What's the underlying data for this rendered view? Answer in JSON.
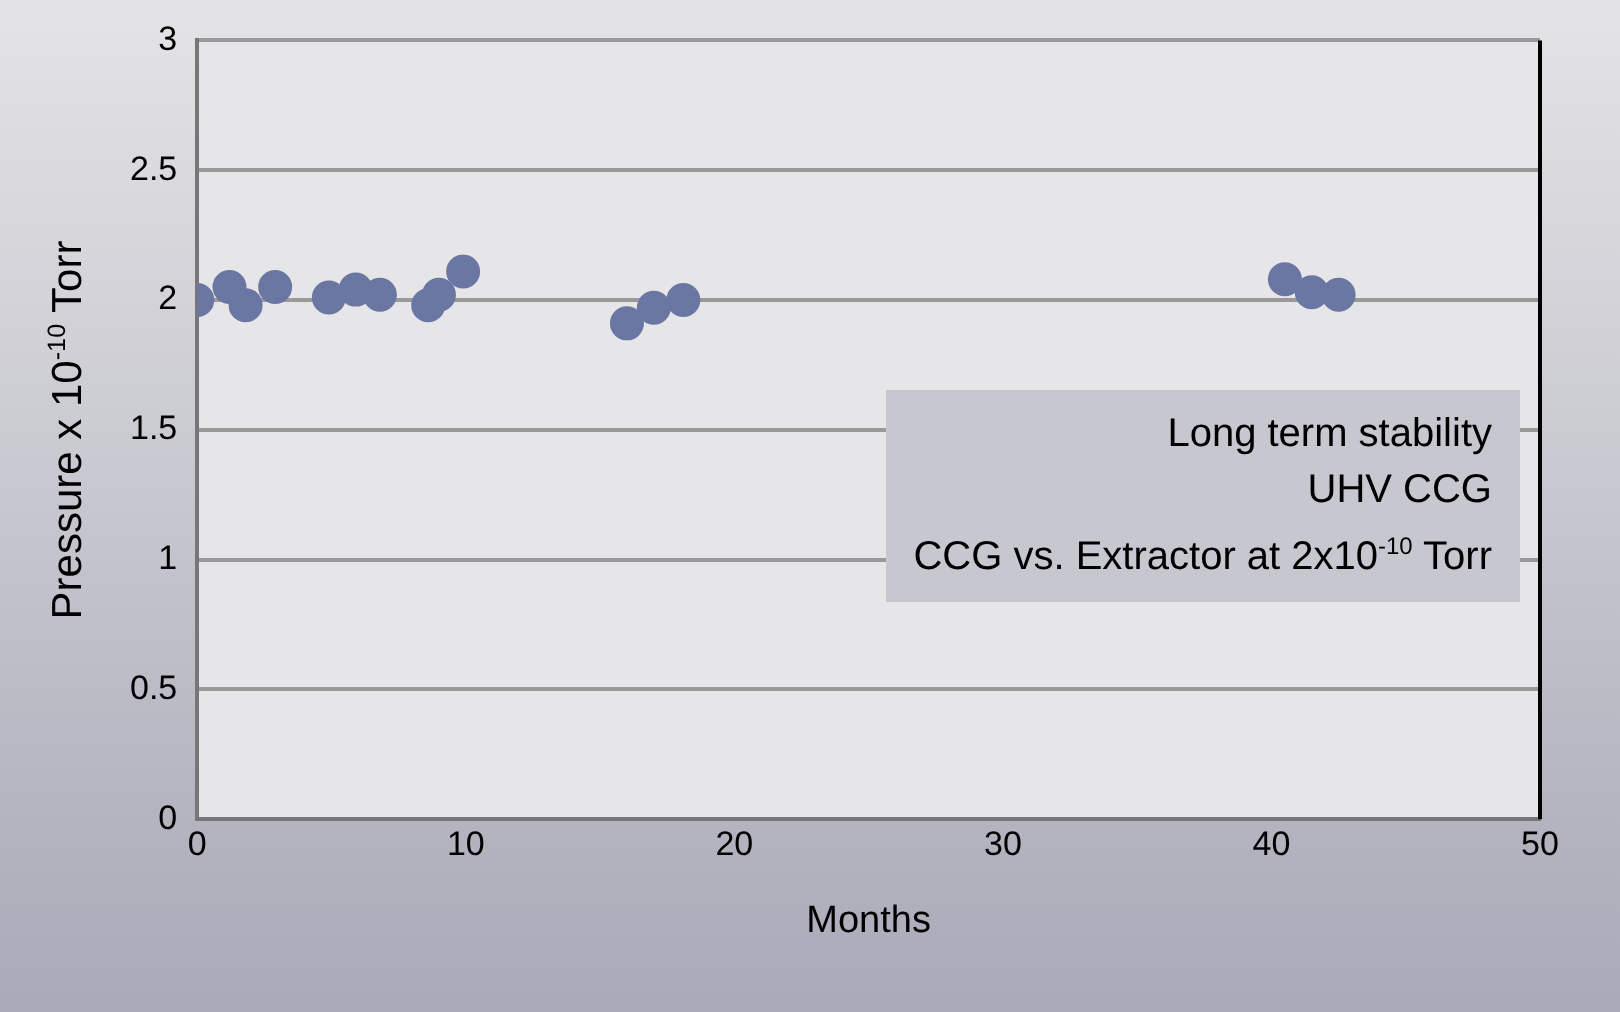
{
  "chart_data": {
    "type": "scatter",
    "xlabel": "Months",
    "ylabel": "Pressure x 10$^{-10}$ Torr",
    "annotations": [
      "Long term stability",
      "UHV CCG",
      "CCG vs. Extractor at 2x10$^{-10}$ Torr"
    ],
    "series": [
      {
        "color": "#6b77a3",
        "x": [
          0,
          1.2,
          1.8,
          2.9,
          4.9,
          5.9,
          6.8,
          8.6,
          9.0,
          9.9,
          16,
          17,
          18.1,
          40.5,
          41.5,
          42.5
        ],
        "values": [
          2.0,
          2.05,
          1.98,
          2.05,
          2.01,
          2.04,
          2.02,
          1.98,
          2.02,
          2.11,
          1.91,
          1.97,
          2.0,
          2.08,
          2.03,
          2.02
        ]
      }
    ],
    "xlim": [
      0,
      50
    ],
    "xticks": [
      0,
      10,
      20,
      30,
      40,
      50
    ],
    "ylim": [
      0,
      3
    ],
    "yticks": [
      0,
      0.5,
      1,
      1.5,
      2,
      2.5,
      3
    ],
    "grid": "y",
    "legend": false,
    "marker": "circle"
  }
}
